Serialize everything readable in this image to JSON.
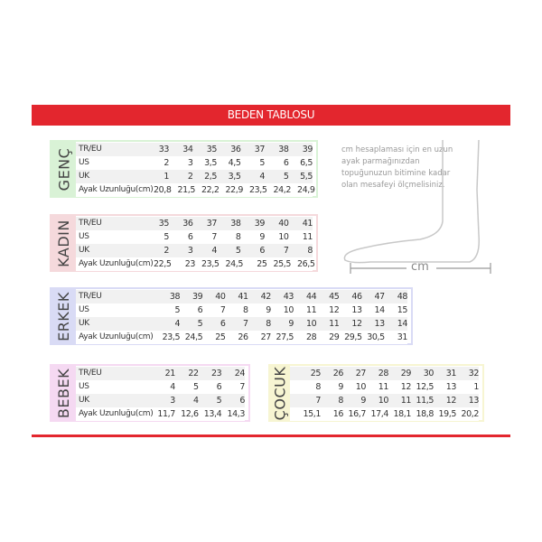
{
  "title": "BEDEN TABLOSU",
  "note": "cm hesaplaması için en uzun ayak parmağınızdan topuğunuzun bitimine kadar olan mesafeyi ölçmelisiniz.",
  "cm_label": "cm",
  "tables": [
    {
      "id": "genc",
      "label": "GENÇ",
      "color": "#d9f2d6",
      "rows": [
        {
          "label": "TR/EU",
          "values": [
            "33",
            "34",
            "35",
            "36",
            "37",
            "38",
            "39"
          ]
        },
        {
          "label": "US",
          "values": [
            "2",
            "3",
            "3,5",
            "4,5",
            "5",
            "6",
            "6,5"
          ]
        },
        {
          "label": "UK",
          "values": [
            "1",
            "2",
            "2,5",
            "3,5",
            "4",
            "5",
            "5,5"
          ]
        },
        {
          "label": "Ayak Uzunluğu(cm)",
          "values": [
            "20,8",
            "21,5",
            "22,2",
            "22,9",
            "23,5",
            "24,2",
            "24,9"
          ]
        }
      ]
    },
    {
      "id": "kadin",
      "label": "KADIN",
      "color": "#f5d9dc",
      "rows": [
        {
          "label": "TR/EU",
          "values": [
            "35",
            "36",
            "37",
            "38",
            "39",
            "40",
            "41"
          ]
        },
        {
          "label": "US",
          "values": [
            "5",
            "6",
            "7",
            "8",
            "9",
            "10",
            "11"
          ]
        },
        {
          "label": "UK",
          "values": [
            "2",
            "3",
            "4",
            "5",
            "6",
            "7",
            "8"
          ]
        },
        {
          "label": "Ayak Uzunluğu(cm)",
          "values": [
            "22,5",
            "23",
            "23,5",
            "24,5",
            "25",
            "25,5",
            "26,5"
          ]
        }
      ]
    },
    {
      "id": "erkek",
      "label": "ERKEK",
      "color": "#d9dbf5",
      "rows": [
        {
          "label": "TR/EU",
          "values": [
            "38",
            "39",
            "40",
            "41",
            "42",
            "43",
            "44",
            "45",
            "46",
            "47",
            "48"
          ]
        },
        {
          "label": "US",
          "values": [
            "5",
            "6",
            "7",
            "8",
            "9",
            "10",
            "11",
            "12",
            "13",
            "14",
            "15"
          ]
        },
        {
          "label": "UK",
          "values": [
            "4",
            "5",
            "6",
            "7",
            "8",
            "9",
            "10",
            "11",
            "12",
            "13",
            "14"
          ]
        },
        {
          "label": "Ayak Uzunluğu(cm)",
          "values": [
            "23,5",
            "24,5",
            "25",
            "26",
            "27",
            "27,5",
            "28",
            "29",
            "29,5",
            "30,5",
            "31"
          ]
        }
      ]
    },
    {
      "id": "bebek",
      "label": "BEBEK",
      "color": "#f5d9f2",
      "rows": [
        {
          "label": "TR/EU",
          "values": [
            "21",
            "22",
            "23",
            "24"
          ]
        },
        {
          "label": "US",
          "values": [
            "4",
            "5",
            "6",
            "7"
          ]
        },
        {
          "label": "UK",
          "values": [
            "3",
            "4",
            "5",
            "6"
          ]
        },
        {
          "label": "Ayak Uzunluğu(cm)",
          "values": [
            "11,7",
            "12,6",
            "13,4",
            "14,3"
          ]
        }
      ]
    },
    {
      "id": "cocuk",
      "label": "ÇOCUK",
      "color": "#f7f5d2",
      "rows": [
        {
          "label": "",
          "values": [
            "25",
            "26",
            "27",
            "28",
            "29",
            "30",
            "31",
            "32"
          ]
        },
        {
          "label": "",
          "values": [
            "8",
            "9",
            "10",
            "11",
            "12",
            "12,5",
            "13",
            "1"
          ]
        },
        {
          "label": "",
          "values": [
            "7",
            "8",
            "9",
            "10",
            "11",
            "11,5",
            "12",
            "13"
          ]
        },
        {
          "label": "",
          "values": [
            "15,1",
            "16",
            "16,7",
            "17,4",
            "18,1",
            "18,8",
            "19,5",
            "20,2"
          ]
        }
      ]
    }
  ]
}
